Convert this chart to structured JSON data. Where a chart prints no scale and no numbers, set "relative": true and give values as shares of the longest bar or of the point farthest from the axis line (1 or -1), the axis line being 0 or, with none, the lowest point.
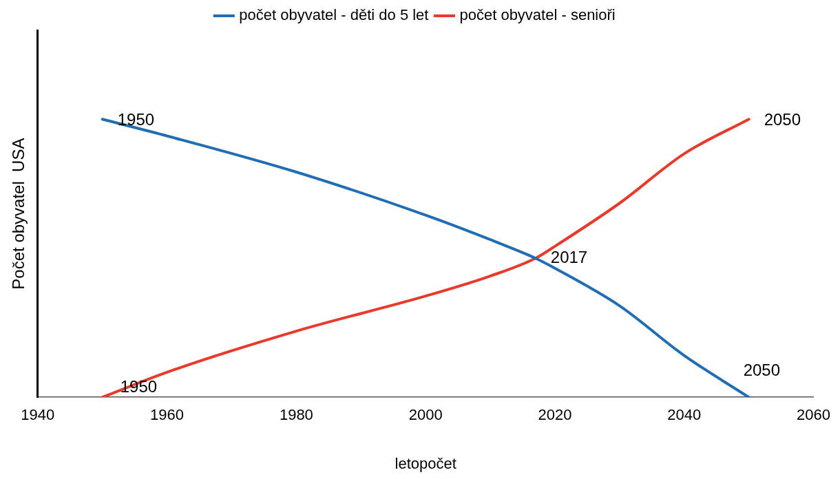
{
  "chart_data": {
    "type": "line",
    "relative": true,
    "xlabel": "letopočet",
    "ylabel": "Počet obyvatel  USA",
    "x": [
      1950,
      1960,
      1980,
      2000,
      2010,
      2017,
      2020,
      2030,
      2040,
      2050
    ],
    "series": [
      {
        "name": "počet obyvatel - děti do 5 let",
        "color": "#1f6db5",
        "values": [
          1,
          0.94,
          0.81,
          0.655,
          0.567,
          0.5,
          0.464,
          0.329,
          0.15,
          0
        ]
      },
      {
        "name": "počet obyvatel - senioři",
        "color": "#e8392b",
        "values": [
          0,
          0.09,
          0.238,
          0.364,
          0.436,
          0.5,
          0.543,
          0.698,
          0.876,
          1
        ]
      }
    ],
    "xlim": [
      1940,
      2060
    ],
    "xticks": [
      1940,
      1960,
      1980,
      2000,
      2020,
      2040,
      2060
    ],
    "annotations": [
      {
        "text": "1950",
        "x": 1950,
        "y": 1
      },
      {
        "text": "2050",
        "x": 2050,
        "y": 1
      },
      {
        "text": "2017",
        "x": 2017,
        "y": 0.5
      },
      {
        "text": "1950",
        "x": 1950,
        "y": 0
      },
      {
        "text": "2050",
        "x": 2050,
        "y": 0
      }
    ],
    "grid": false,
    "legend": "top",
    "marker": "none",
    "line_style": "solid"
  }
}
